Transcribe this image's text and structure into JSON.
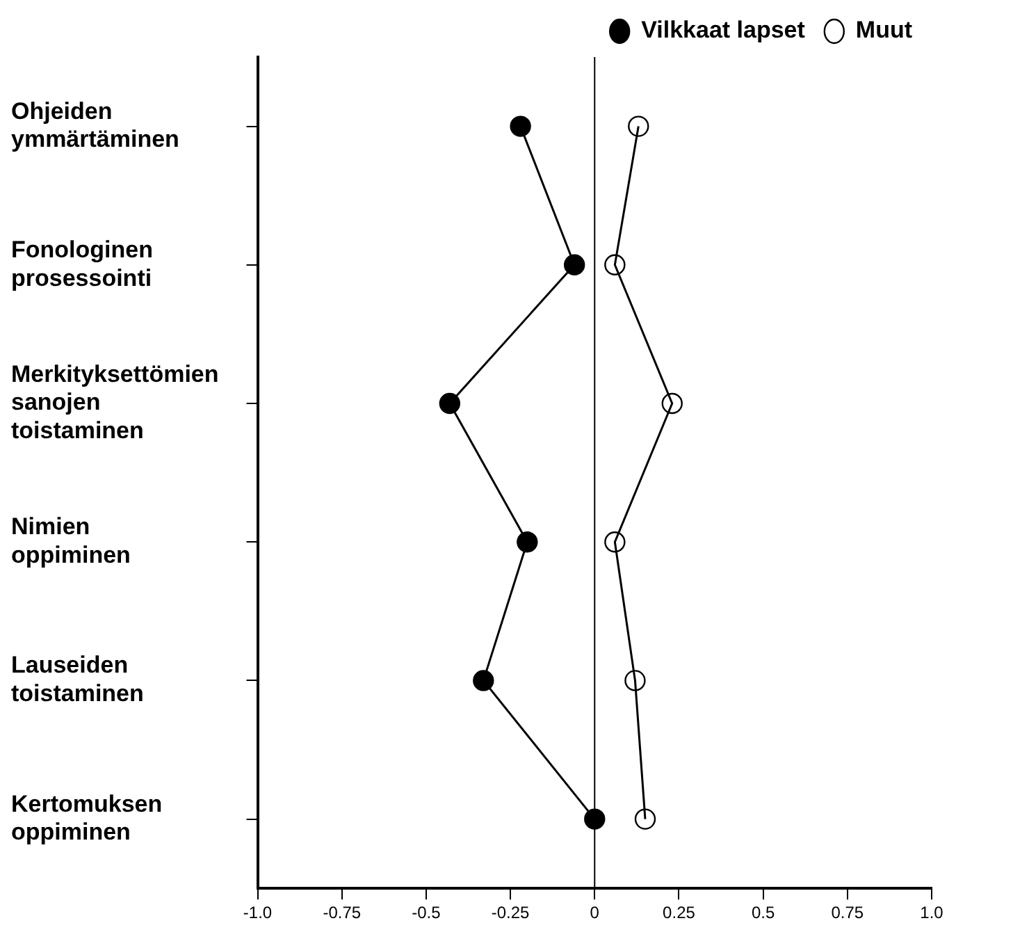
{
  "chart_data": {
    "type": "line",
    "orientation": "horizontal",
    "categories": [
      "Ohjeiden ymmärtäminen",
      "Fonologinen prosessointi",
      "Merkityksettömien sanojen toistaminen",
      "Nimien oppiminen",
      "Lauseiden toistaminen",
      "Kertomuksen oppiminen"
    ],
    "series": [
      {
        "name": "Vilkkaat lapset",
        "color": "#000000",
        "values": [
          -0.22,
          -0.06,
          -0.43,
          -0.2,
          -0.33,
          0
        ]
      },
      {
        "name": "Muut",
        "color": "#000000",
        "values": [
          0.13,
          0.06,
          0.23,
          0.06,
          0.12,
          0.15
        ]
      }
    ],
    "xlim": [
      -1,
      1
    ],
    "xticks": [
      {
        "value": -1,
        "label": "-1.0"
      },
      -0.75,
      -0.5,
      -0.25,
      0,
      0.25,
      0.5,
      0.75,
      {
        "value": 1,
        "label": "1.0"
      }
    ],
    "ref_lines": [
      {
        "axis": "x",
        "value": 0,
        "color": "#000000"
      }
    ],
    "grid": false,
    "legend": "top right",
    "marker": "circle",
    "line_style": "solid"
  }
}
